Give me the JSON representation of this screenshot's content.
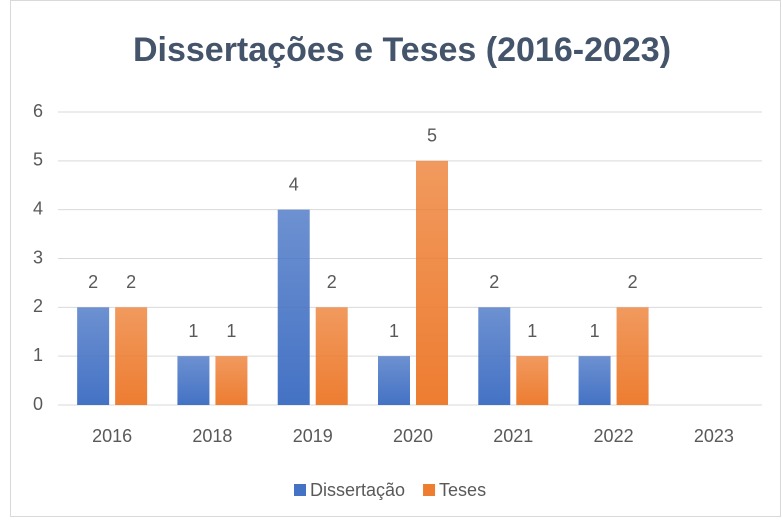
{
  "chart_data": {
    "type": "bar",
    "title": "Dissertações e Teses (2016-2023)",
    "categories": [
      "2016",
      "2018",
      "2019",
      "2020",
      "2021",
      "2022",
      "2023"
    ],
    "series": [
      {
        "name": "Dissertação",
        "color": "#4472c4",
        "values": [
          2,
          1,
          4,
          1,
          2,
          1,
          null
        ]
      },
      {
        "name": "Teses",
        "color": "#ed7d31",
        "values": [
          2,
          1,
          2,
          5,
          1,
          2,
          null
        ]
      }
    ],
    "ylim": [
      0,
      6
    ],
    "yticks": [
      0,
      1,
      2,
      3,
      4,
      5,
      6
    ],
    "grid": true,
    "legend": "bottom",
    "data_labels": true
  }
}
